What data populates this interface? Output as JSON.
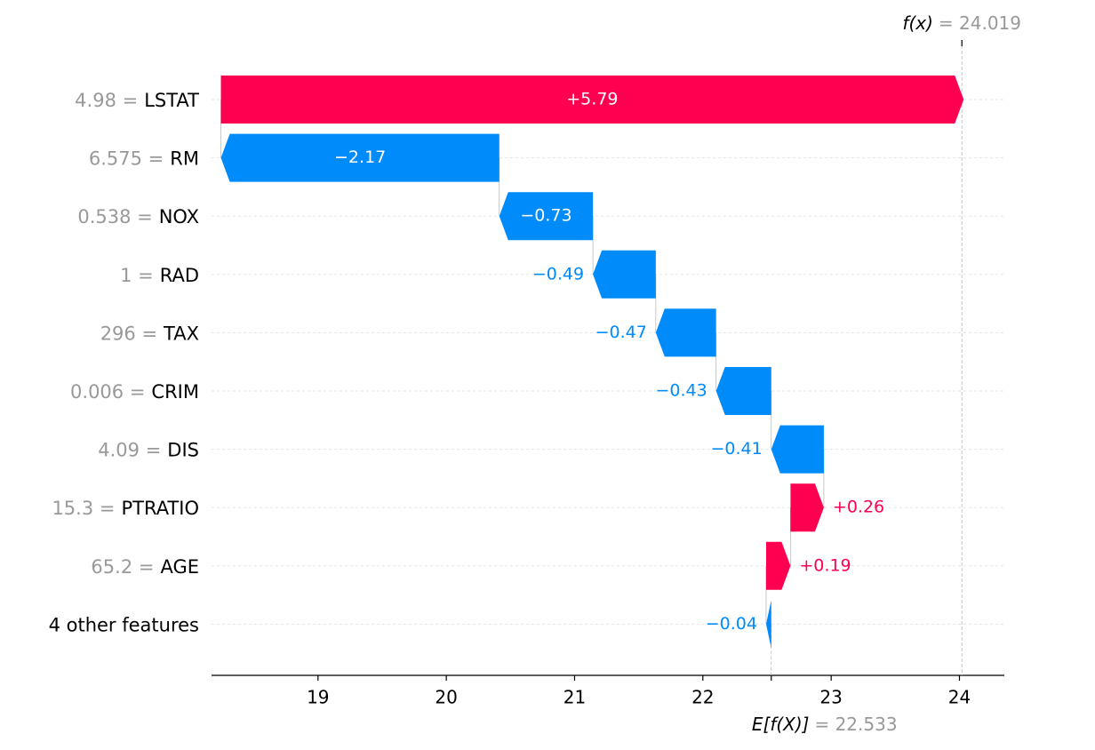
{
  "chart_data": {
    "type": "waterfall",
    "feature_names": [
      "LSTAT",
      "RM",
      "NOX",
      "RAD",
      "TAX",
      "CRIM",
      "DIS",
      "PTRATIO",
      "AGE",
      "4 other features"
    ],
    "feature_values": [
      "4.98 =",
      "6.575 =",
      "0.538 =",
      "1 =",
      "296 =",
      "0.006 =",
      "4.09 =",
      "15.3 =",
      "65.2 =",
      null
    ],
    "values": [
      5.79,
      -2.17,
      -0.73,
      -0.49,
      -0.47,
      -0.43,
      -0.41,
      0.26,
      0.19,
      -0.04
    ],
    "value_labels": [
      "+5.79",
      "−2.17",
      "−0.73",
      "−0.49",
      "−0.47",
      "−0.43",
      "−0.41",
      "+0.26",
      "+0.19",
      "−0.04"
    ],
    "positive_color": "#ff0051",
    "negative_color": "#008bfb",
    "base": {
      "name": "E[f(X)]",
      "value": 22.533,
      "value_label": "= 22.533"
    },
    "output": {
      "name": "f(x)",
      "value": 24.019,
      "value_label": "= 24.019"
    },
    "xlim": [
      18.17,
      24.35
    ],
    "xticks": [
      19,
      20,
      21,
      22,
      23,
      24
    ],
    "grid": true
  }
}
